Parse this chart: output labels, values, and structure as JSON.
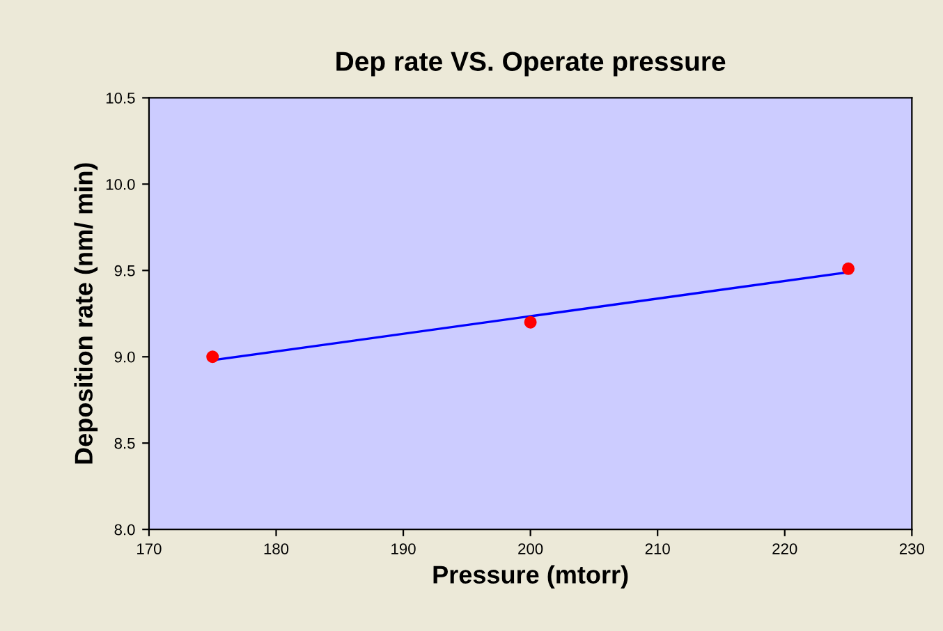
{
  "chart_data": {
    "type": "scatter",
    "title": "Dep rate VS. Operate pressure",
    "xlabel": "Pressure (mtorr)",
    "ylabel": "Deposition rate (nm/ min)",
    "xlim": [
      170,
      230
    ],
    "xticks": [
      170,
      180,
      190,
      200,
      210,
      220,
      230
    ],
    "ylim": [
      8.0,
      10.5
    ],
    "yticks": [
      {
        "value": 8.0,
        "label": "8.0"
      },
      {
        "value": 8.5,
        "label": "8.5"
      },
      {
        "value": 9.0,
        "label": "9.0"
      },
      {
        "value": 9.5,
        "label": "9.5"
      },
      {
        "value": 10.0,
        "label": "10.0"
      },
      {
        "value": 10.5,
        "label": "10.5"
      }
    ],
    "grid": false,
    "legend": false,
    "series": [
      {
        "color": "#ff0000",
        "marker": "circle",
        "x": [
          175,
          200,
          225
        ],
        "values": [
          9.0,
          9.2,
          9.51
        ]
      },
      {
        "type": "line",
        "color": "#0000ff",
        "marker": "none",
        "x": [
          175,
          225
        ],
        "values": [
          8.98,
          9.49
        ]
      }
    ]
  }
}
